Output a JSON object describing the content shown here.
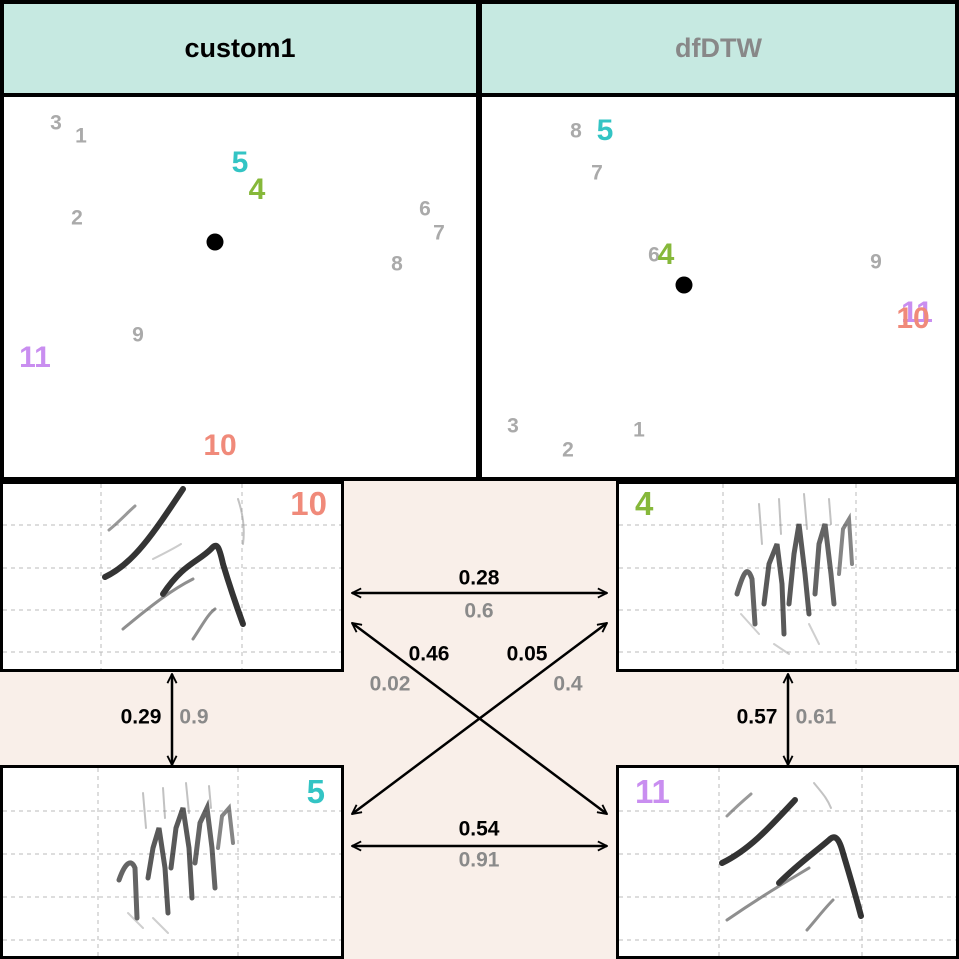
{
  "headers": {
    "left": "custom1",
    "right": "dfDTW"
  },
  "colors": {
    "header_bg": "#c6e9e1",
    "gray_label": "#aaaaaa",
    "pink_bg": "#f9efe9",
    "c10": "#f08a7a",
    "c4": "#86b83a",
    "c5": "#33c4c4",
    "c11": "#c98ef0",
    "secondary_value": "#8a8a8a"
  },
  "panel_left": {
    "points": {
      "p3": "3",
      "p1": "1",
      "p5": "5",
      "p4": "4",
      "p2": "2",
      "p6": "6",
      "p7": "7",
      "p8": "8",
      "p9": "9",
      "p11": "11",
      "p10": "10"
    }
  },
  "panel_right": {
    "points": {
      "p8": "8",
      "p5": "5",
      "p7": "7",
      "p6": "6",
      "p4": "4",
      "p9": "9",
      "p11": "11",
      "p10": "10",
      "p3": "3",
      "p1": "1",
      "p2": "2"
    }
  },
  "spectrograms": {
    "top_left": "10",
    "top_right": "4",
    "bottom_left": "5",
    "bottom_right": "11"
  },
  "distances": {
    "top": {
      "a": "0.28",
      "b": "0.6"
    },
    "bottom": {
      "a": "0.54",
      "b": "0.91"
    },
    "left": {
      "a": "0.29",
      "b": "0.9"
    },
    "right": {
      "a": "0.57",
      "b": "0.61"
    },
    "diag_down": {
      "a": "0.46",
      "b": "0.02"
    },
    "diag_up": {
      "a": "0.05",
      "b": "0.4"
    }
  }
}
